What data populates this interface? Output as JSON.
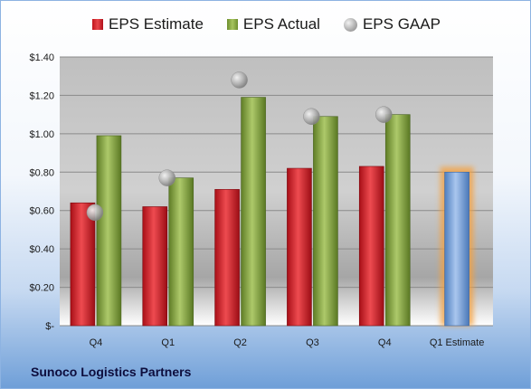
{
  "company": "Sunoco Logistics Partners",
  "legend": {
    "estimate": "EPS Estimate",
    "actual": "EPS Actual",
    "gaap": "EPS GAAP"
  },
  "colors": {
    "estimate": "#d72027",
    "actual": "#8cb04a",
    "gaap": "#a6a6a6",
    "estimate_forward": "#7ea6dc",
    "highlight": "#f5a03c"
  },
  "chart_data": {
    "type": "bar",
    "categories": [
      "Q4",
      "Q1",
      "Q2",
      "Q3",
      "Q4",
      "Q1 Estimate"
    ],
    "series": [
      {
        "name": "EPS Estimate",
        "values": [
          0.64,
          0.62,
          0.71,
          0.82,
          0.83,
          0.8
        ]
      },
      {
        "name": "EPS Actual",
        "values": [
          0.99,
          0.77,
          1.19,
          1.09,
          1.1,
          null
        ]
      },
      {
        "name": "EPS GAAP",
        "type": "scatter",
        "values": [
          0.59,
          0.77,
          1.28,
          1.09,
          1.1,
          null
        ]
      }
    ],
    "ylim": [
      0,
      1.4
    ],
    "yticks": [
      0,
      0.2,
      0.4,
      0.6,
      0.8,
      1.0,
      1.2,
      1.4
    ],
    "ytick_labels": [
      "$-",
      "$0.20",
      "$0.40",
      "$0.60",
      "$0.80",
      "$1.00",
      "$1.20",
      "$1.40"
    ],
    "grid": true,
    "legend_position": "top"
  }
}
